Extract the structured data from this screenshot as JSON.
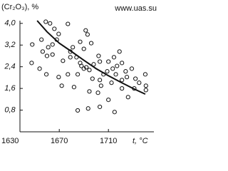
{
  "chart_data": {
    "type": "scatter",
    "ylabel": "(Cr₂O₃), %",
    "xlabel": "t, °C",
    "watermark": "www.uas.su",
    "xlim": [
      1638,
      1747
    ],
    "ylim": [
      0,
      4.1
    ],
    "xticks": [
      1630,
      1670,
      1710
    ],
    "yticks": [
      {
        "value": 0.8,
        "label": "0,8"
      },
      {
        "value": 1.6,
        "label": "1,6"
      },
      {
        "value": 2.4,
        "label": "2,4"
      },
      {
        "value": 3.2,
        "label": "3,2"
      },
      {
        "value": 4.0,
        "label": "4,0"
      }
    ],
    "color": "#111",
    "series": [
      {
        "style": "points",
        "x": [
          1659,
          1662.5,
          1666,
          1677,
          1648,
          1655.5,
          1669.5,
          1668,
          1661,
          1664.5,
          1691.5,
          1693,
          1687,
          1696,
          1690,
          1702,
          1681,
          1679,
          1656.5,
          1660,
          1664.5,
          1647.5,
          1673,
          1679,
          1684,
          1687,
          1688,
          1690,
          1692,
          1694.5,
          1698,
          1703,
          1710,
          1714.5,
          1719,
          1721,
          1717,
          1713.5,
          1709,
          1706,
          1716,
          1724,
          1729,
          1725,
          1721,
          1732,
          1740,
          1735,
          1740.5,
          1712.5,
          1703,
          1697,
          1685,
          1677,
          1669.5,
          1659.5,
          1654,
          1682,
          1672,
          1694.5,
          1701.5,
          1704,
          1721,
          1731,
          1740.5,
          1710,
          1703,
          1693.5,
          1685,
          1715,
          1726
        ],
        "values": [
          4.06,
          4.0,
          3.8,
          3.98,
          3.22,
          3.4,
          3.61,
          3.4,
          3.12,
          3.22,
          3.74,
          3.59,
          3.32,
          3.27,
          3.06,
          2.8,
          3.12,
          2.96,
          2.96,
          2.8,
          2.85,
          2.54,
          2.62,
          2.75,
          2.75,
          2.54,
          2.43,
          2.33,
          2.38,
          2.28,
          2.49,
          2.59,
          2.59,
          2.75,
          2.96,
          2.54,
          2.43,
          2.33,
          2.23,
          2.12,
          2.12,
          2.23,
          2.33,
          2.02,
          1.91,
          1.96,
          2.12,
          1.81,
          1.7,
          1.81,
          1.91,
          1.96,
          2.12,
          2.12,
          2.02,
          2.12,
          2.33,
          1.65,
          1.7,
          1.49,
          1.44,
          1.7,
          1.6,
          1.6,
          1.54,
          1.18,
          0.92,
          0.86,
          0.79,
          0.73,
          1.28
        ]
      },
      {
        "style": "line",
        "x": [
          1652,
          1660,
          1670,
          1680,
          1690,
          1700,
          1710,
          1720,
          1730,
          1740
        ],
        "values": [
          4.1,
          3.69,
          3.27,
          2.96,
          2.64,
          2.33,
          2.07,
          1.83,
          1.6,
          1.39
        ]
      }
    ]
  }
}
